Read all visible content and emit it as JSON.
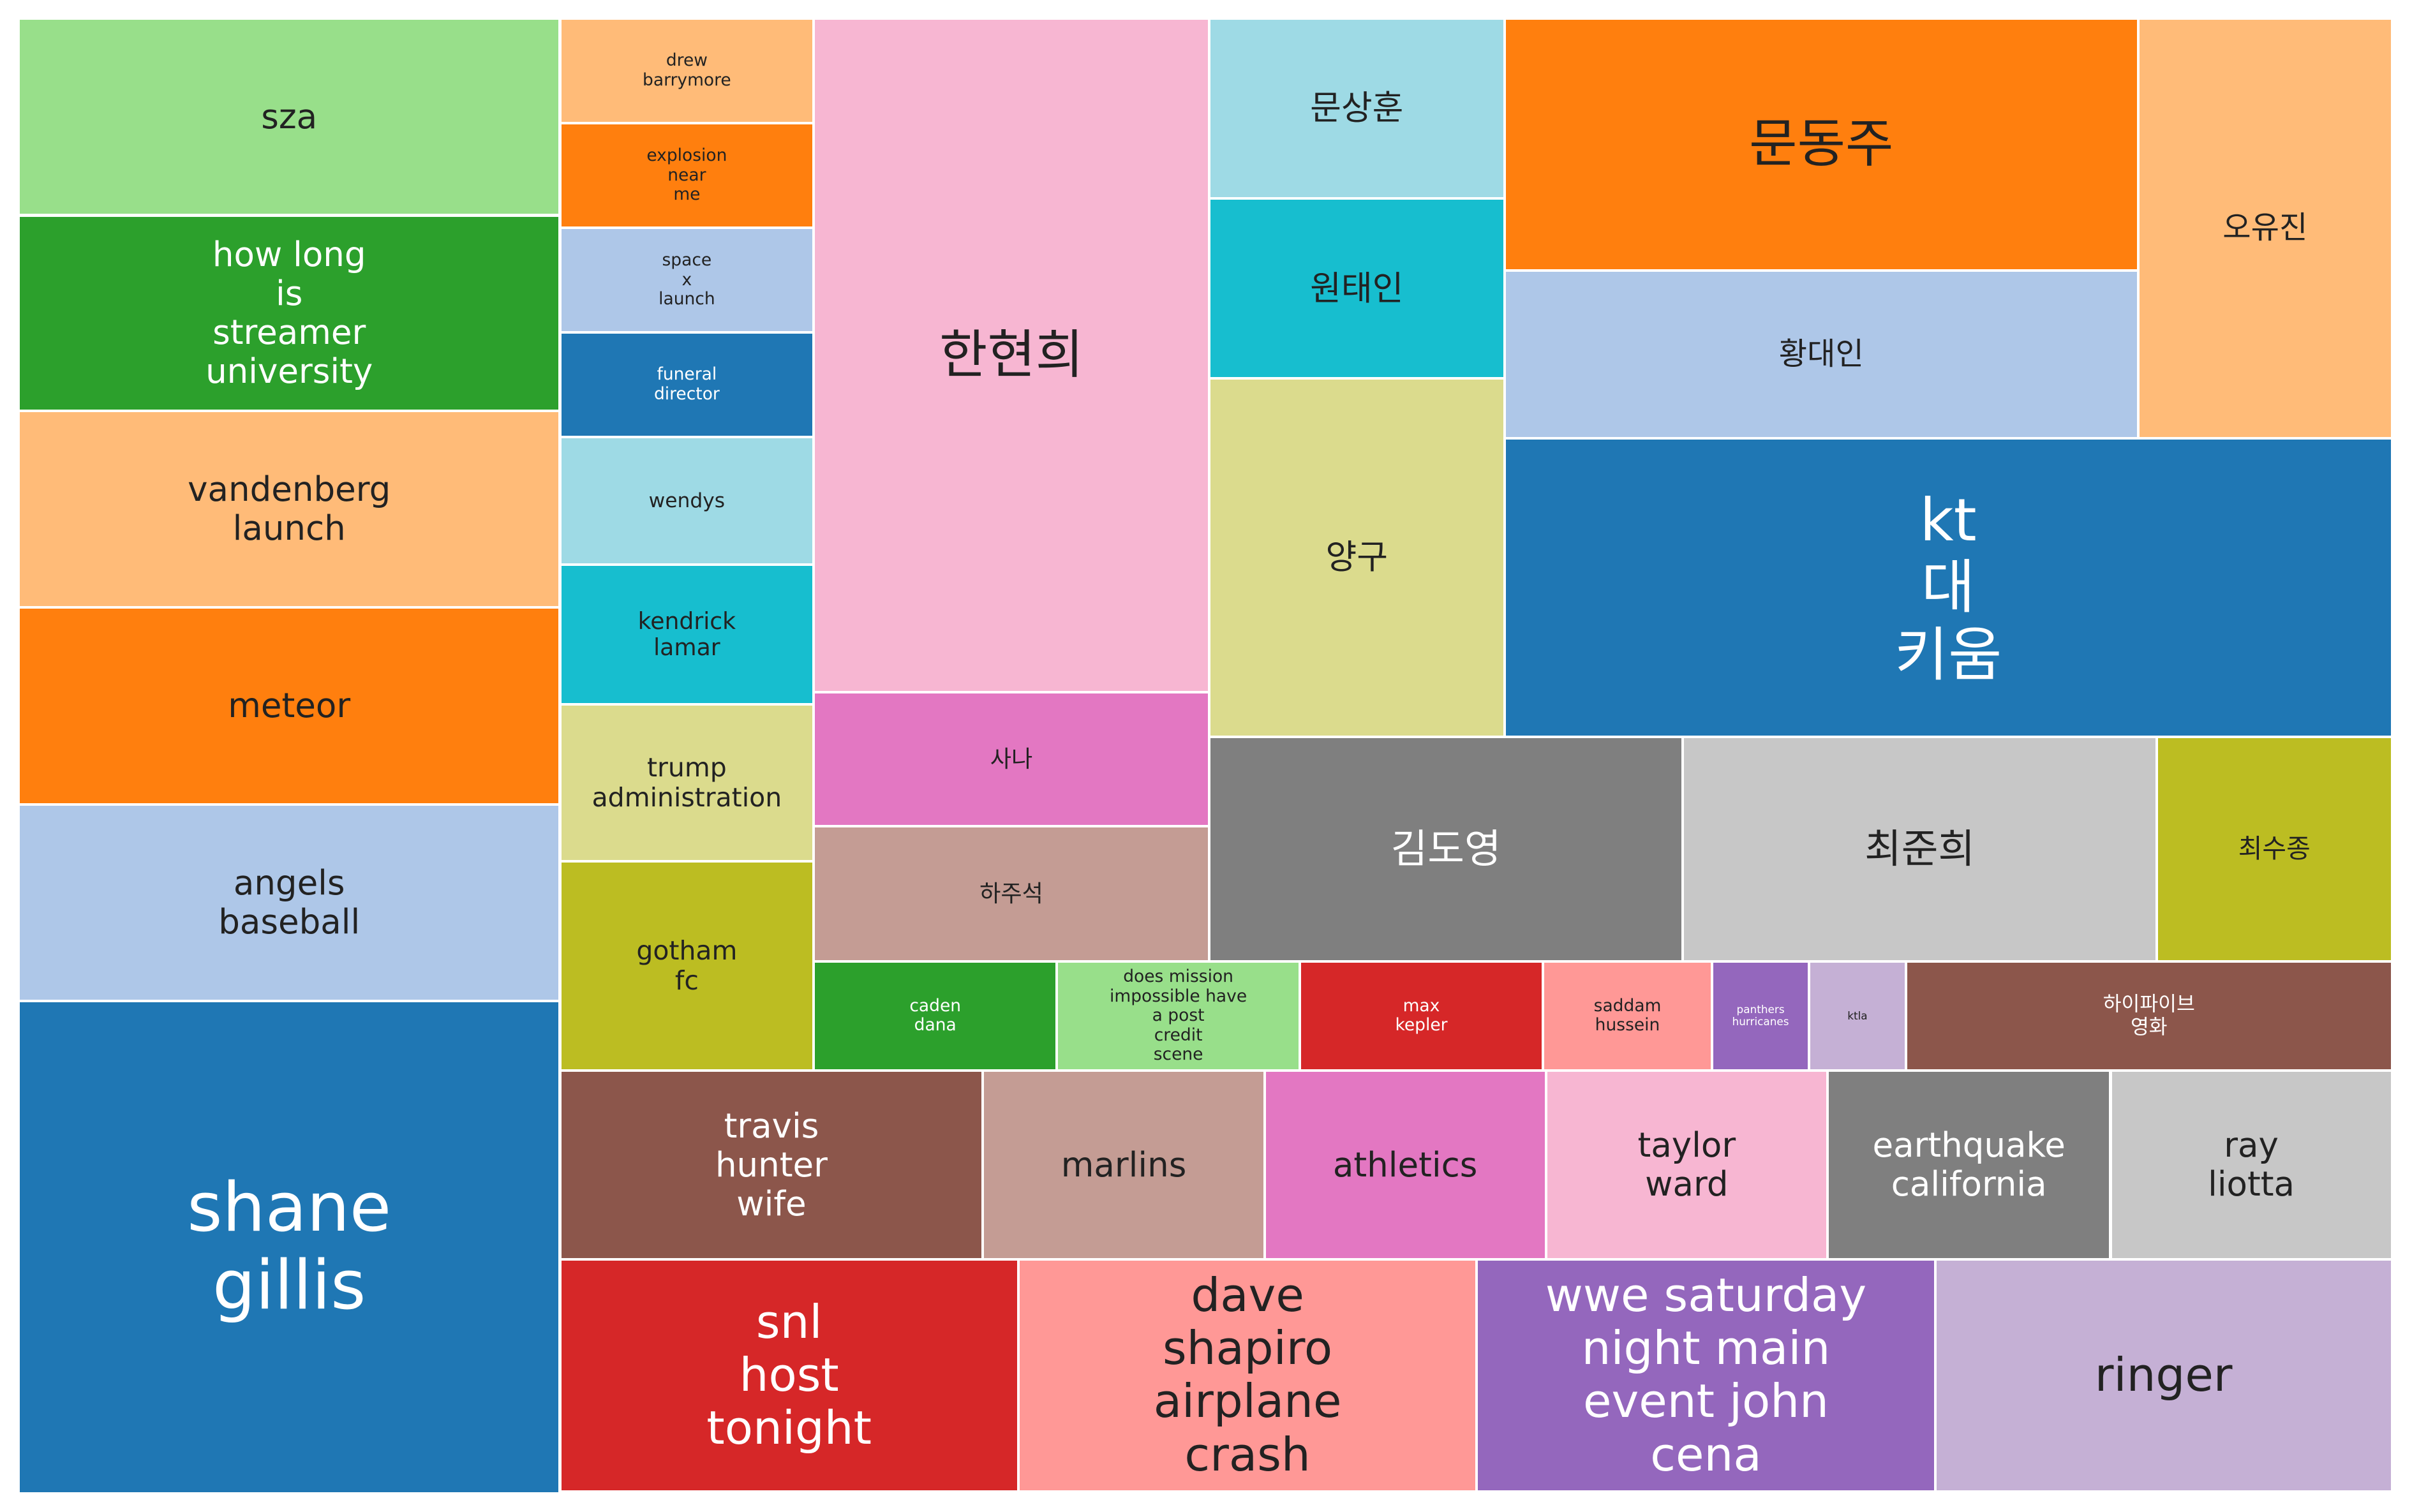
{
  "chart_data": {
    "type": "treemap",
    "tiles": [
      {
        "label": "shane\ngillis",
        "color": "#1f77b4",
        "text_color": "#ffffff"
      },
      {
        "label": "angels\nbaseball",
        "color": "#aec7e8",
        "text_color": "#222222"
      },
      {
        "label": "meteor",
        "color": "#ff7f0e",
        "text_color": "#222222"
      },
      {
        "label": "vandenberg\nlaunch",
        "color": "#ffbb78",
        "text_color": "#222222"
      },
      {
        "label": "how long\nis\nstreamer\nuniversity",
        "color": "#2ca02c",
        "text_color": "#ffffff"
      },
      {
        "label": "sza",
        "color": "#98df8a",
        "text_color": "#222222"
      },
      {
        "label": "drew\nbarrymore",
        "color": "#ffbb78",
        "text_color": "#222222"
      },
      {
        "label": "explosion\nnear\nme",
        "color": "#ff7f0e",
        "text_color": "#222222"
      },
      {
        "label": "space\nx\nlaunch",
        "color": "#aec7e8",
        "text_color": "#222222"
      },
      {
        "label": "funeral\ndirector",
        "color": "#1f77b4",
        "text_color": "#ffffff"
      },
      {
        "label": "wendys",
        "color": "#9edae5",
        "text_color": "#222222"
      },
      {
        "label": "kendrick\nlamar",
        "color": "#17becf",
        "text_color": "#222222"
      },
      {
        "label": "trump\nadministration",
        "color": "#dbdb8d",
        "text_color": "#222222"
      },
      {
        "label": "gotham\nfc",
        "color": "#bcbd22",
        "text_color": "#222222"
      },
      {
        "label": "한현희",
        "color": "#f7b6d2",
        "text_color": "#222222"
      },
      {
        "label": "사나",
        "color": "#e377c2",
        "text_color": "#222222"
      },
      {
        "label": "하주석",
        "color": "#c49c94",
        "text_color": "#222222"
      },
      {
        "label": "문상훈",
        "color": "#9edae5",
        "text_color": "#222222"
      },
      {
        "label": "원태인",
        "color": "#17becf",
        "text_color": "#222222"
      },
      {
        "label": "양구",
        "color": "#dbdb8d",
        "text_color": "#222222"
      },
      {
        "label": "문동주",
        "color": "#ff7f0e",
        "text_color": "#222222"
      },
      {
        "label": "황대인",
        "color": "#aec7e8",
        "text_color": "#222222"
      },
      {
        "label": "오유진",
        "color": "#ffbb78",
        "text_color": "#222222"
      },
      {
        "label": "kt\n대\n키움",
        "color": "#1f77b4",
        "text_color": "#ffffff"
      },
      {
        "label": "김도영",
        "color": "#7f7f7f",
        "text_color": "#ffffff"
      },
      {
        "label": "최준희",
        "color": "#c7c7c7",
        "text_color": "#222222"
      },
      {
        "label": "최수종",
        "color": "#bcbd22",
        "text_color": "#222222"
      },
      {
        "label": "caden\ndana",
        "color": "#2ca02c",
        "text_color": "#ffffff"
      },
      {
        "label": "does mission\nimpossible have\na post\ncredit\nscene",
        "color": "#98df8a",
        "text_color": "#222222"
      },
      {
        "label": "max\nkepler",
        "color": "#d62728",
        "text_color": "#ffffff"
      },
      {
        "label": "saddam\nhussein",
        "color": "#ff9896",
        "text_color": "#222222"
      },
      {
        "label": "panthers\nhurricanes",
        "color": "#9467bd",
        "text_color": "#ffffff"
      },
      {
        "label": "ktla",
        "color": "#c5b0d5",
        "text_color": "#222222"
      },
      {
        "label": "하이파이브\n영화",
        "color": "#8c564b",
        "text_color": "#ffffff"
      },
      {
        "label": "travis\nhunter\nwife",
        "color": "#8c564b",
        "text_color": "#ffffff"
      },
      {
        "label": "marlins",
        "color": "#c49c94",
        "text_color": "#222222"
      },
      {
        "label": "athletics",
        "color": "#e377c2",
        "text_color": "#222222"
      },
      {
        "label": "taylor\nward",
        "color": "#f7b6d2",
        "text_color": "#222222"
      },
      {
        "label": "earthquake\ncalifornia",
        "color": "#7f7f7f",
        "text_color": "#ffffff"
      },
      {
        "label": "ray\nliotta",
        "color": "#c7c7c7",
        "text_color": "#222222"
      },
      {
        "label": "snl\nhost\ntonight",
        "color": "#d62728",
        "text_color": "#ffffff"
      },
      {
        "label": "dave\nshapiro\nairplane\ncrash",
        "color": "#ff9896",
        "text_color": "#222222"
      },
      {
        "label": "wwe saturday\nnight main\nevent john\ncena",
        "color": "#9467bd",
        "text_color": "#ffffff"
      },
      {
        "label": "ringer",
        "color": "#c5b0d5",
        "text_color": "#222222"
      }
    ]
  }
}
